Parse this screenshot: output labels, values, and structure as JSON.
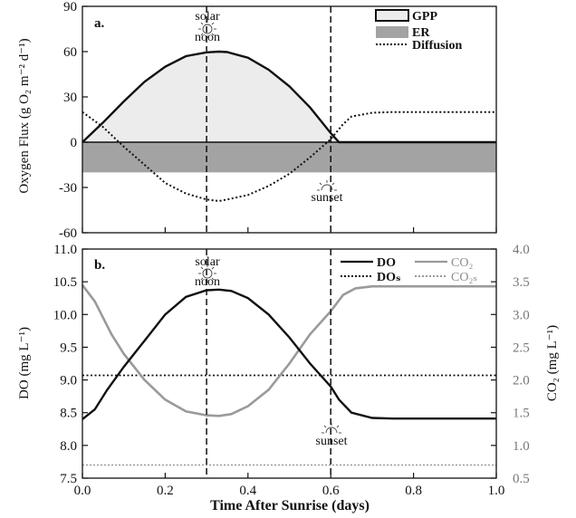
{
  "chart_data": [
    {
      "id": "a",
      "type": "area",
      "panel_label": "a.",
      "ylabel": "Oxygen Flux (g O₂ m⁻² d⁻¹)",
      "ylim": [
        -60,
        90
      ],
      "yticks": [
        "90",
        "60",
        "30",
        "0",
        "-30",
        "-60"
      ],
      "xlim": [
        0,
        1
      ],
      "series": [
        {
          "name": "GPP",
          "x": [
            0,
            0.05,
            0.1,
            0.15,
            0.2,
            0.25,
            0.3,
            0.33,
            0.35,
            0.4,
            0.45,
            0.5,
            0.55,
            0.6,
            0.62,
            0.7,
            0.8,
            0.9,
            1.0
          ],
          "y": [
            0,
            13,
            27,
            40,
            50,
            57,
            59.5,
            60,
            59.7,
            56,
            48,
            37,
            23,
            6,
            0,
            0,
            0,
            0,
            0
          ]
        },
        {
          "name": "ER",
          "x": [
            0,
            1
          ],
          "y": [
            -20,
            -20
          ]
        },
        {
          "name": "Diffusion",
          "x": [
            0,
            0.05,
            0.1,
            0.15,
            0.2,
            0.25,
            0.3,
            0.33,
            0.35,
            0.4,
            0.45,
            0.5,
            0.55,
            0.6,
            0.63,
            0.65,
            0.7,
            0.75,
            0.8,
            0.9,
            1.0
          ],
          "y": [
            20,
            10,
            -3,
            -15,
            -27,
            -34,
            -38,
            -39,
            -38,
            -35,
            -29,
            -21,
            -10,
            2,
            12,
            17,
            19.5,
            20,
            20,
            20,
            20
          ]
        }
      ],
      "legend": [
        "GPP",
        "ER",
        "Diffusion"
      ],
      "annotations": {
        "noon_label_1": "solar",
        "noon_label_2": "noon",
        "sunset_label": "sunset"
      },
      "vlines": [
        0.3,
        0.6
      ]
    },
    {
      "id": "b",
      "type": "line",
      "panel_label": "b.",
      "xlabel": "Time After Sunrise (days)",
      "ylabel": "DO (mg L⁻¹)",
      "ylabel_right": "CO₂ (mg L⁻¹)",
      "ylim": [
        7.5,
        11.0
      ],
      "yticks": [
        "11.0",
        "10.5",
        "10.0",
        "9.5",
        "9.0",
        "8.5",
        "8.0",
        "7.5"
      ],
      "ylim_right": [
        0.5,
        4.0
      ],
      "yticks_right": [
        "4.0",
        "3.5",
        "3.0",
        "2.5",
        "2.0",
        "1.5",
        "1.0",
        "0.5"
      ],
      "xlim": [
        0,
        1
      ],
      "xticks": [
        "0.0",
        "0.2",
        "0.4",
        "0.6",
        "0.8",
        "1.0"
      ],
      "series": [
        {
          "name": "DO",
          "x": [
            0,
            0.03,
            0.06,
            0.1,
            0.15,
            0.2,
            0.25,
            0.3,
            0.33,
            0.36,
            0.4,
            0.45,
            0.5,
            0.55,
            0.6,
            0.62,
            0.65,
            0.7,
            0.75,
            0.8,
            0.9,
            1.0
          ],
          "y": [
            8.4,
            8.55,
            8.85,
            9.2,
            9.6,
            10.0,
            10.27,
            10.37,
            10.38,
            10.36,
            10.25,
            10.0,
            9.65,
            9.25,
            8.9,
            8.7,
            8.5,
            8.42,
            8.41,
            8.41,
            8.41,
            8.41
          ]
        },
        {
          "name": "CO₂",
          "axis": "right",
          "x": [
            0,
            0.03,
            0.07,
            0.1,
            0.15,
            0.2,
            0.25,
            0.3,
            0.33,
            0.36,
            0.4,
            0.45,
            0.5,
            0.55,
            0.6,
            0.63,
            0.66,
            0.7,
            0.8,
            0.9,
            1.0
          ],
          "y": [
            3.45,
            3.2,
            2.7,
            2.4,
            2.0,
            1.7,
            1.52,
            1.46,
            1.45,
            1.48,
            1.6,
            1.85,
            2.25,
            2.7,
            3.05,
            3.3,
            3.4,
            3.43,
            3.43,
            3.43,
            3.43
          ]
        },
        {
          "name": "DOₛ",
          "x": [
            0,
            1
          ],
          "y": [
            9.07,
            9.07
          ]
        },
        {
          "name": "CO₂ₛ",
          "axis": "right",
          "x": [
            0,
            1
          ],
          "y": [
            0.7,
            0.7
          ]
        }
      ],
      "legend": [
        "DO",
        "CO₂",
        "DOₛ",
        "CO₂ₛ"
      ],
      "annotations": {
        "noon_label_1": "solar",
        "noon_label_2": "noon",
        "sunset_label": "sunset"
      },
      "vlines": [
        0.3,
        0.6
      ]
    }
  ]
}
